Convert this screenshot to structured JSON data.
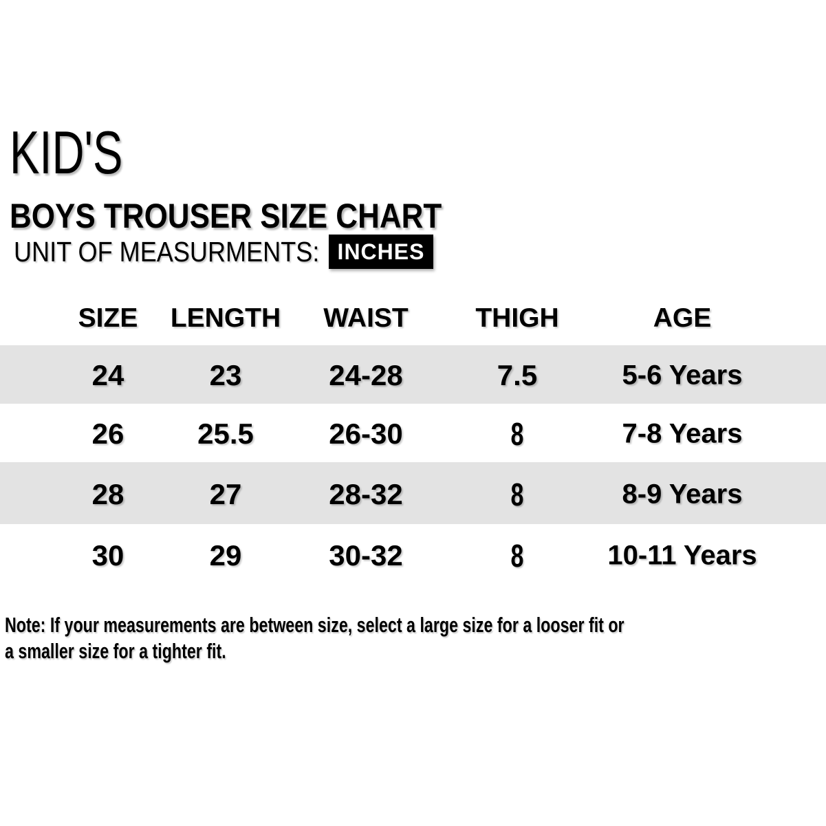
{
  "header": {
    "kicker": "KID'S",
    "title": "BOYS TROUSER SIZE CHART",
    "unit_label": "UNIT OF MEASURMENTS:",
    "unit_value": "INCHES"
  },
  "table": {
    "headers": [
      "SIZE",
      "LENGTH",
      "WAIST",
      "THIGH",
      "AGE"
    ],
    "rows": [
      [
        "24",
        "23",
        "24-28",
        "7.5",
        "5-6 Years"
      ],
      [
        "26",
        "25.5",
        "26-30",
        "8",
        "7-8 Years"
      ],
      [
        "28",
        "27",
        "28-32",
        "8",
        "8-9 Years"
      ],
      [
        "30",
        "29",
        "30-32",
        "8",
        "10-11 Years"
      ]
    ]
  },
  "note": {
    "line1": "Note: If your measurements are between size, select a large size for a looser fit or",
    "line2": "a smaller size for a tighter fit."
  },
  "colors": {
    "background": "#ffffff",
    "text": "#000000",
    "row_stripe": "#e3e3e3",
    "badge_bg": "#000000",
    "badge_text": "#ffffff"
  }
}
